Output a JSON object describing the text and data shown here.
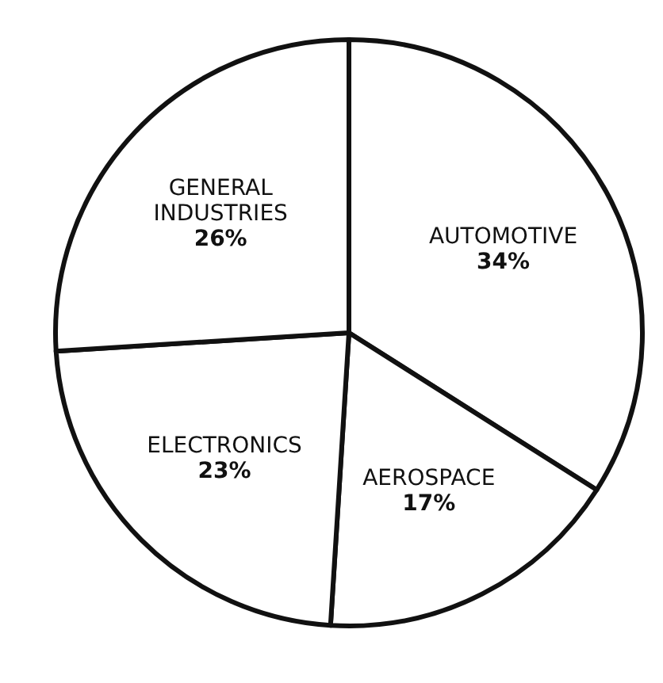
{
  "chart_data": {
    "type": "pie",
    "categories": [
      "AUTOMOTIVE",
      "AEROSPACE",
      "ELECTRONICS",
      "GENERAL INDUSTRIES"
    ],
    "values": [
      34,
      17,
      23,
      26
    ],
    "colors": [
      "#ffffff",
      "#ffffff",
      "#ffffff",
      "#ffffff"
    ],
    "value_labels": [
      "34%",
      "17%",
      "23%",
      "26%"
    ]
  }
}
